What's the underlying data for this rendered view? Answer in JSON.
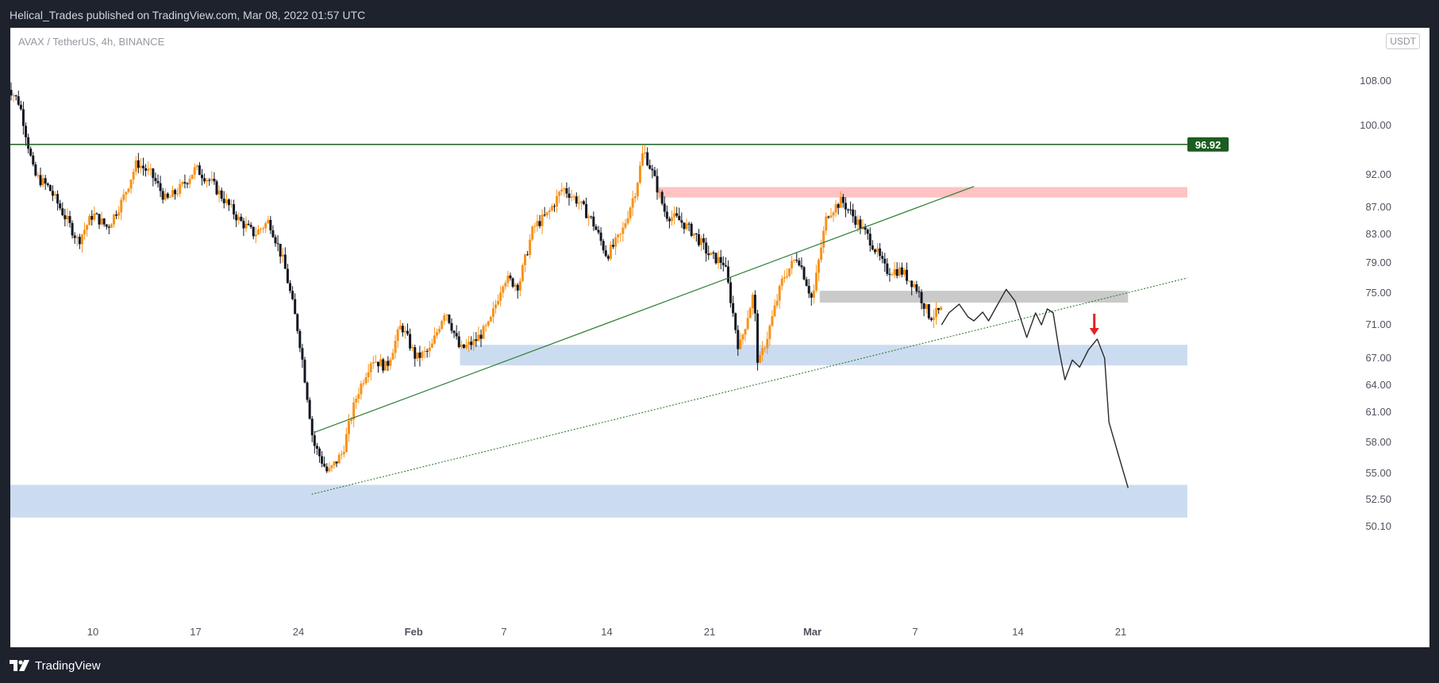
{
  "header": {
    "published_text": "Helical_Trades published on TradingView.com, Mar 08, 2022 01:57 UTC"
  },
  "chart": {
    "symbol_text": "AVAX / TetherUS, 4h, BINANCE",
    "currency_badge": "USDT"
  },
  "footer": {
    "brand": "TradingView"
  },
  "colors": {
    "background_frame": "#1e222d",
    "bull_candle": "#f7931a",
    "bear_candle": "#131722",
    "resistance_line": "#1b5e20",
    "trendline": "#2e7d32",
    "red_zone": "#ffbdbd",
    "grey_zone": "#c7c7c7",
    "blue_zone": "#c7d8ee",
    "projection_path": "#2a2a2a",
    "arrow": "#e52222"
  },
  "chart_data": {
    "type": "candlestick",
    "y_axis_ticks": [
      "108.00",
      "100.00",
      "92.00",
      "87.00",
      "83.00",
      "79.00",
      "75.00",
      "71.00",
      "67.00",
      "64.00",
      "61.00",
      "58.00",
      "55.00",
      "52.50",
      "50.10"
    ],
    "x_axis_ticks": [
      "10",
      "17",
      "24",
      "Feb",
      "7",
      "14",
      "21",
      "Mar",
      "7",
      "14",
      "21"
    ],
    "resistance_level": {
      "price": 96.92,
      "label": "96.92"
    },
    "zones": [
      {
        "name": "supply",
        "price_low": 88.5,
        "price_high": 90.1,
        "color": "red"
      },
      {
        "name": "grey-resistance",
        "price_low": 73.8,
        "price_high": 75.3,
        "color": "grey"
      },
      {
        "name": "demand-upper",
        "price_low": 66.2,
        "price_high": 68.6,
        "color": "blue"
      },
      {
        "name": "demand-lower",
        "price_low": 50.9,
        "price_high": 53.9,
        "color": "blue"
      }
    ],
    "key_points": [
      {
        "date": "Jan 6",
        "high": 110.0
      },
      {
        "date": "Jan 22",
        "low": 53.0
      },
      {
        "date": "Feb 17",
        "high": 99.0
      },
      {
        "date": "Feb 24",
        "low": 64.5
      },
      {
        "date": "Mar 2",
        "high": 91.0
      },
      {
        "date": "Mar 7",
        "close": 75.0
      }
    ],
    "projection_target": 53.5
  }
}
